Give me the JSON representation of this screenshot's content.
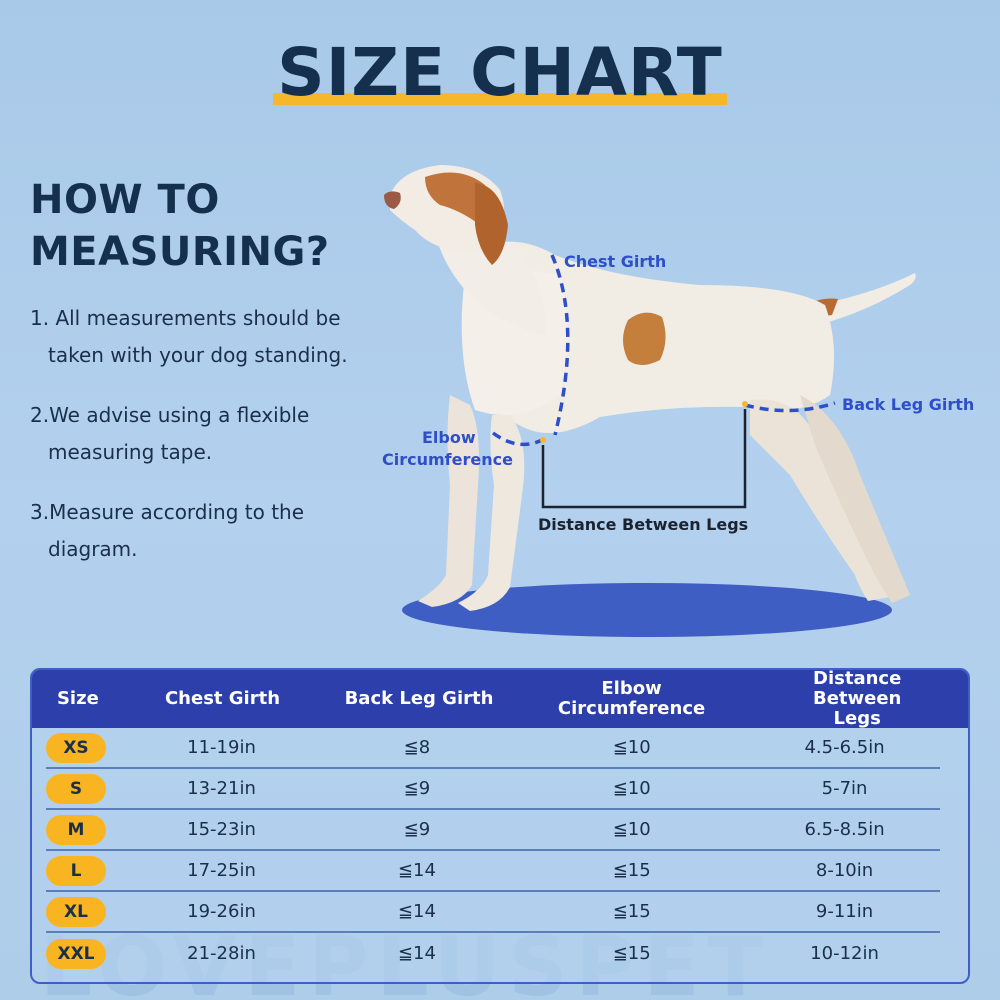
{
  "title": "SIZE CHART",
  "howto": {
    "line1": "HOW TO",
    "line2": "MEASURING?"
  },
  "steps": [
    "1. All measurements should be taken with your dog standing.",
    "2.We advise using a flexible measuring tape.",
    "3.Measure according to the diagram."
  ],
  "diagram_labels": {
    "chest": "Chest Girth",
    "back_leg": "Back Leg Girth",
    "elbow_line1": "Elbow",
    "elbow_line2": "Circumference",
    "distance": "Distance Between Legs"
  },
  "table": {
    "headers": [
      "Size",
      "Chest Girth",
      "Back Leg Girth",
      "Elbow Circumference",
      "Distance Between Legs"
    ],
    "rows": [
      [
        "XS",
        "11-19in",
        "≦8",
        "≦10",
        "4.5-6.5in"
      ],
      [
        "S",
        "13-21in",
        "≦9",
        "≦10",
        "5-7in"
      ],
      [
        "M",
        "15-23in",
        "≦9",
        "≦10",
        "6.5-8.5in"
      ],
      [
        "L",
        "17-25in",
        "≦14",
        "≦15",
        "8-10in"
      ],
      [
        "XL",
        "19-26in",
        "≦14",
        "≦15",
        "9-11in"
      ],
      [
        "XXL",
        "21-28in",
        "≦14",
        "≦15",
        "10-12in"
      ]
    ]
  },
  "watermark": "LOVEPLUSPET",
  "colors": {
    "background": "#afcdeb",
    "title": "#15304f",
    "accent": "#f7b72b",
    "table_header": "#2c3faa",
    "label_blue": "#2e4fc8"
  }
}
